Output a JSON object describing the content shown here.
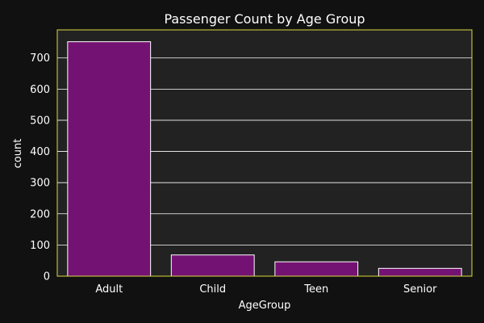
{
  "chart_data": {
    "type": "bar",
    "title": "Passenger Count by Age Group",
    "xlabel": "AgeGroup",
    "ylabel": "count",
    "categories": [
      "Adult",
      "Child",
      "Teen",
      "Senior"
    ],
    "values": [
      752,
      68,
      46,
      25
    ],
    "ylim": [
      0,
      790
    ],
    "yticks": [
      0,
      100,
      200,
      300,
      400,
      500,
      600,
      700
    ],
    "grid": true,
    "legend": "none"
  },
  "colors": {
    "background": "#111111",
    "plot_area": "#222222",
    "bar_fill": "#741273",
    "bar_edge": "#ffffff",
    "axes_edge": "#d9d940",
    "grid": "#ffffff",
    "text": "#ffffff"
  }
}
